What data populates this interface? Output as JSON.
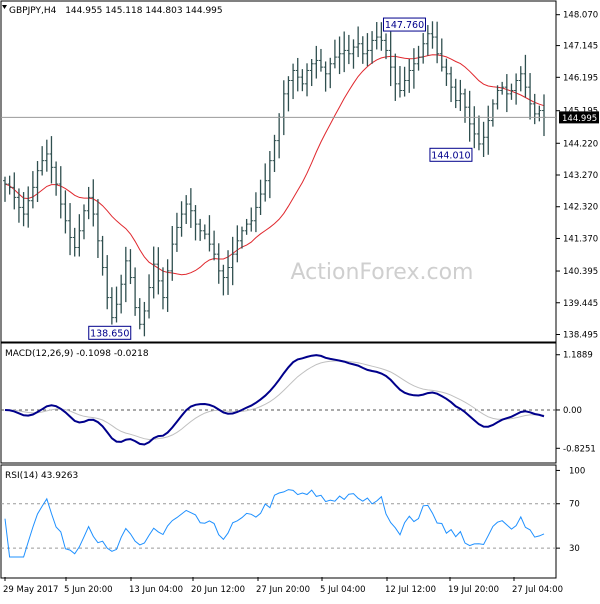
{
  "chart_data": [
    {
      "type": "ohlc",
      "title": "GBPJPY,H4",
      "ohlc_values": "144.955 145.118 144.803 144.995",
      "last_price": 144.995,
      "watermark": "ActionForex.com",
      "y_ticks": [
        148.07,
        147.145,
        146.195,
        145.195,
        144.22,
        143.27,
        142.32,
        141.37,
        140.395,
        139.445,
        138.495
      ],
      "y_tick_labels": [
        "148.070",
        "147.145",
        "146.195",
        "145.195",
        "144.220",
        "143.270",
        "142.320",
        "141.370",
        "140.395",
        "139.445",
        "138.495"
      ],
      "ylim": [
        138.3,
        148.45
      ],
      "x_tick_labels": [
        "29 May 2017",
        "5 Jun 20:00",
        "13 Jun 04:00",
        "20 Jun 12:00",
        "27 Jun 20:00",
        "5 Jul 04:00",
        "12 Jul 12:00",
        "19 Jul 20:00",
        "27 Jul 04:00"
      ],
      "annotations": [
        {
          "label": "147.760",
          "value": 147.76
        },
        {
          "label": "144.010",
          "value": 144.01
        },
        {
          "label": "138.650",
          "value": 138.65
        }
      ],
      "closes": [
        143.0,
        142.9,
        142.6,
        142.3,
        142.1,
        142.5,
        142.9,
        143.4,
        143.7,
        143.9,
        143.5,
        143.0,
        142.4,
        141.9,
        141.4,
        141.1,
        141.6,
        142.2,
        142.6,
        142.1,
        141.3,
        140.5,
        139.6,
        139.0,
        139.4,
        140.0,
        140.7,
        140.2,
        139.3,
        138.8,
        139.2,
        139.9,
        140.6,
        140.1,
        139.6,
        140.4,
        141.2,
        141.7,
        142.1,
        142.4,
        142.2,
        141.8,
        141.6,
        141.5,
        141.2,
        140.9,
        140.4,
        140.2,
        140.5,
        140.9,
        141.3,
        141.6,
        141.8,
        141.9,
        142.3,
        142.7,
        143.1,
        143.7,
        144.3,
        145.0,
        145.7,
        146.1,
        146.4,
        146.2,
        146.0,
        146.4,
        146.6,
        146.7,
        146.5,
        146.3,
        146.6,
        146.8,
        146.9,
        147.0,
        146.9,
        147.1,
        147.2,
        146.9,
        147.0,
        147.3,
        147.4,
        147.3,
        147.0,
        146.5,
        146.0,
        145.8,
        146.1,
        146.4,
        146.6,
        146.8,
        147.2,
        147.5,
        147.4,
        146.9,
        146.5,
        146.3,
        145.9,
        145.5,
        145.7,
        145.3,
        144.8,
        144.5,
        144.2,
        144.4,
        144.9,
        145.4,
        145.8,
        145.9,
        145.7,
        145.8,
        146.1,
        146.3,
        145.9,
        145.4,
        145.1,
        145.2,
        144.995
      ],
      "ma_period": 20,
      "ma_color": "#e0282e",
      "bar_color": "#2f4f4f"
    },
    {
      "type": "line",
      "title": "MACD(12,26,9) -0.1098 -0.0218",
      "y_ticks": [
        1.1889,
        0.0,
        -0.8251
      ],
      "y_tick_labels": [
        "1.1889",
        "0.00",
        "-0.8251"
      ],
      "ylim": [
        -1.12,
        1.42
      ],
      "series": [
        {
          "role": "macd",
          "color": "#00008b"
        },
        {
          "role": "signal",
          "color": "#c0c0c0"
        }
      ]
    },
    {
      "type": "line",
      "title": "RSI(14) 43.9263",
      "y_ticks": [
        100,
        70,
        30
      ],
      "y_tick_labels": [
        "100",
        "70",
        "30"
      ],
      "ylim": [
        4,
        104
      ],
      "rsi_period": 14,
      "levels": [
        70,
        30
      ],
      "series": [
        {
          "role": "rsi",
          "color": "#1e90ff"
        }
      ]
    }
  ],
  "colors": {
    "background": "#ffffff",
    "frame": "#000000",
    "grid_dashed": "#9a9a9a",
    "text": "#000000",
    "watermark": "#cfcfcf",
    "last_price_box": "#000000"
  }
}
